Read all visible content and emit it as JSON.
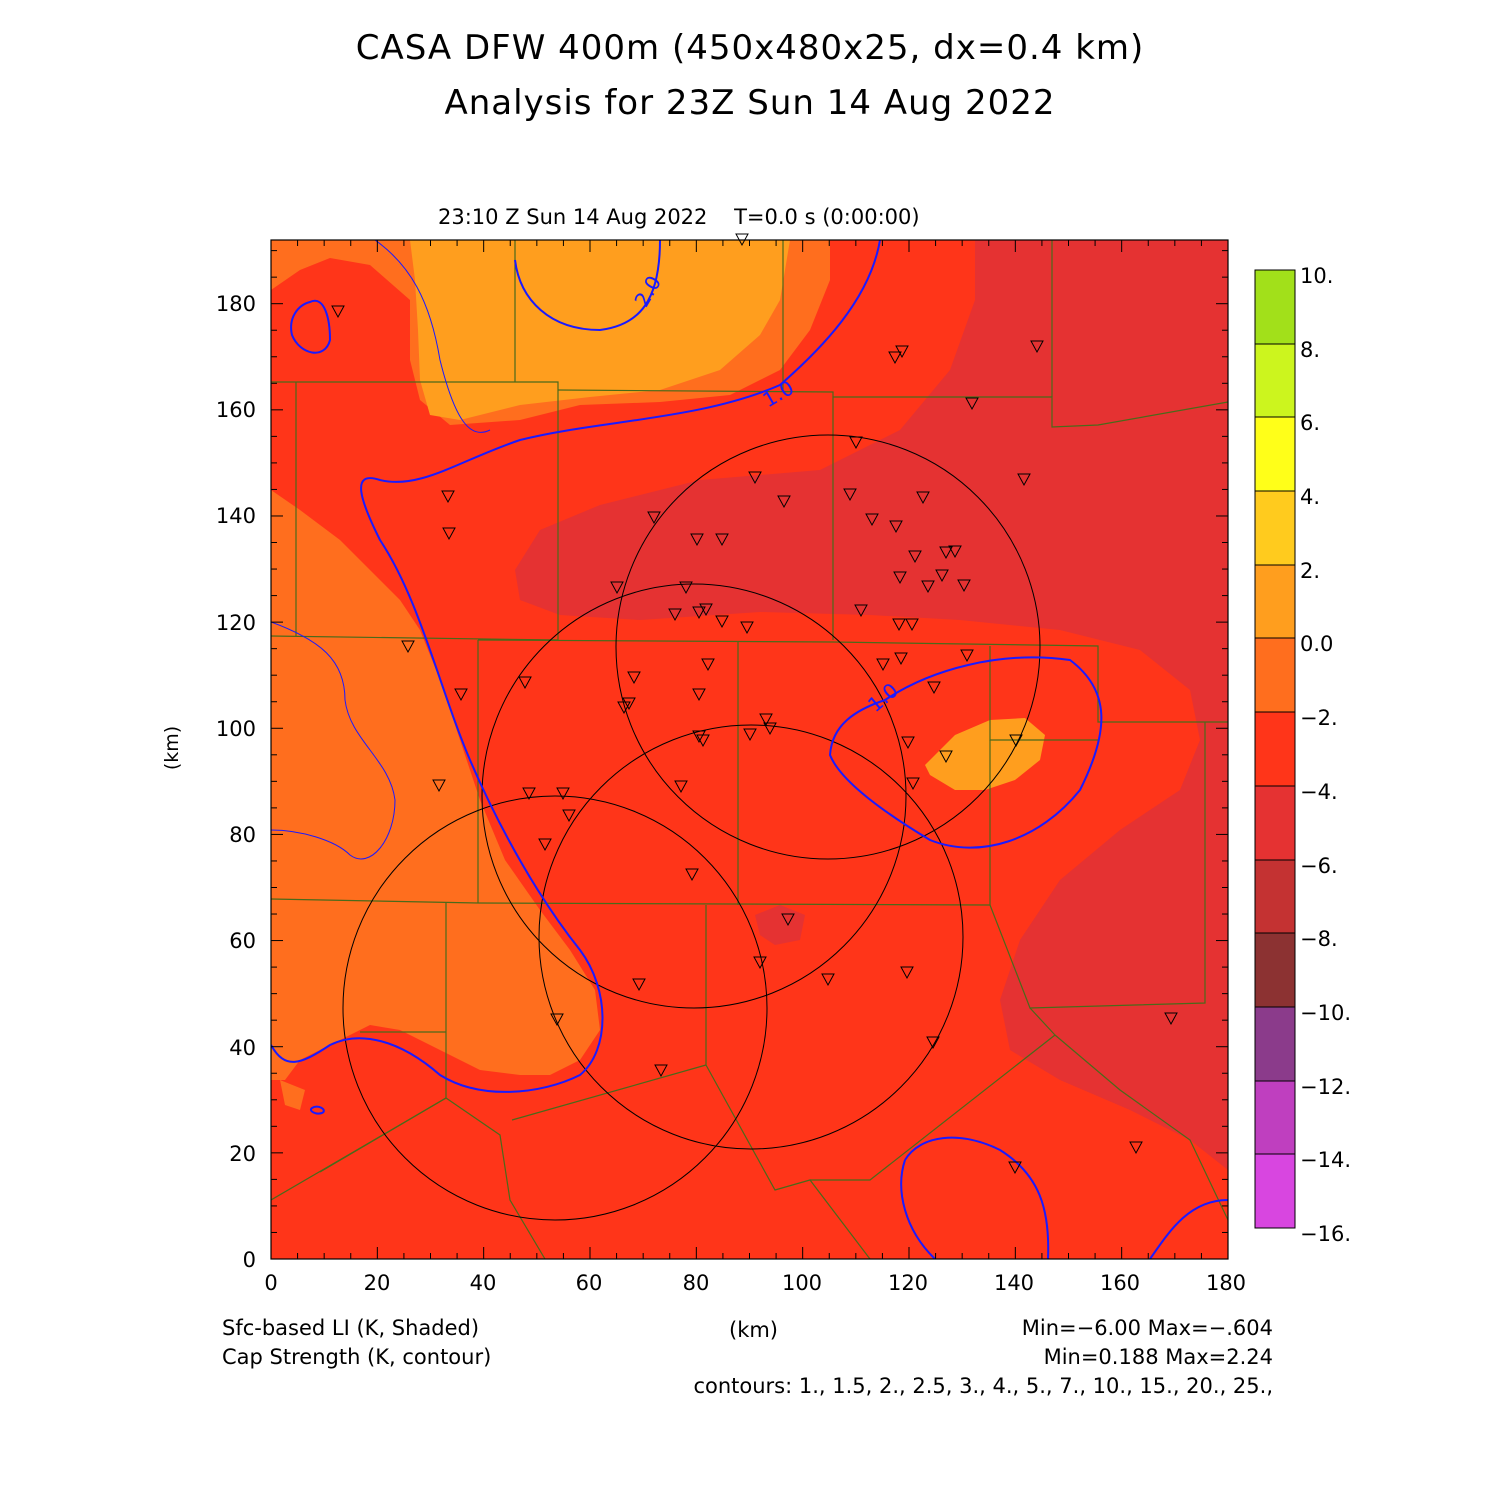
{
  "header": {
    "title_line1": "CASA DFW 400m (450x480x25, dx=0.4 km)",
    "title_line2": "Analysis for 23Z Sun 14 Aug 2022",
    "valid_time": "23:10 Z Sun 14 Aug 2022    T=0.0 s (0:00:00)"
  },
  "axes": {
    "x_label": "(km)",
    "y_label": "(km)",
    "x_ticks": [
      "0",
      "20",
      "40",
      "60",
      "80",
      "100",
      "120",
      "140",
      "160",
      "180"
    ],
    "y_ticks": [
      "0",
      "20",
      "40",
      "60",
      "80",
      "100",
      "120",
      "140",
      "160",
      "180"
    ],
    "xlim": [
      0,
      180
    ],
    "ylim": [
      0,
      192
    ]
  },
  "colorbar": {
    "labels": [
      "10.",
      "8.",
      "6.",
      "4.",
      "2.",
      "0.0",
      "−2.",
      "−4.",
      "−6.",
      "−8.",
      "−10.",
      "−12.",
      "−14.",
      "−16."
    ],
    "colors_top_to_bottom": [
      "#a2e01a",
      "#ccf51e",
      "#ffff19",
      "#ffcb1e",
      "#ff9e1e",
      "#ff6e1e",
      "#ff3519",
      "#e53232",
      "#c43232",
      "#8c3232",
      "#7a2828",
      "#8b3b8b",
      "#bf3fbf",
      "#d846e0"
    ]
  },
  "contour_labels": [
    "2.0",
    "1.0",
    "1.0"
  ],
  "footer": {
    "shaded_field": "Sfc-based LI (K, Shaded)",
    "contour_field": "Cap Strength (K, contour)",
    "x_unit": "(km)",
    "shaded_range": "Min=−6.00 Max=−.604",
    "contour_range": "Min=0.188 Max=2.24",
    "contour_levels": "contours: 1., 1.5, 2., 2.5, 3., 4., 5., 7., 10., 15., 20., 25.,"
  },
  "colors": {
    "field_minus2_to_minus4": "#ff3519",
    "field_0_to_minus2": "#ff6e1e",
    "field_2_to_0": "#ff9e1e",
    "field_minus4_to_minus6": "#e53232",
    "contour": "#1a1aff",
    "county_lines": "#4a6a1a"
  },
  "station_marker": "down-triangle"
}
